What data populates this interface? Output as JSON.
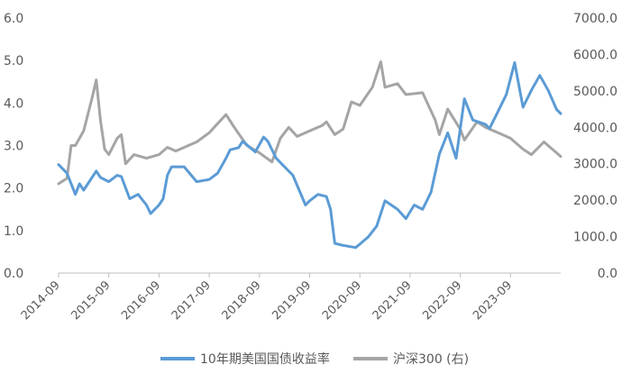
{
  "chart_data": {
    "type": "line",
    "title": "",
    "x_tick_labels": [
      "2014-09",
      "2015-09",
      "2016-09",
      "2017-09",
      "2018-09",
      "2019-09",
      "2020-09",
      "2021-09",
      "2022-09",
      "2023-09"
    ],
    "x_range": [
      "2014-09",
      "2024-09"
    ],
    "y_left": {
      "range": [
        0,
        6
      ],
      "tick_labels": [
        "0.0",
        "1.0",
        "2.0",
        "3.0",
        "4.0",
        "5.0",
        "6.0"
      ]
    },
    "y_right": {
      "range": [
        0,
        7000
      ],
      "tick_labels": [
        "0.0",
        "1000.0",
        "2000.0",
        "3000.0",
        "4000.0",
        "5000.0",
        "6000.0",
        "7000.0"
      ]
    },
    "grid": false,
    "legend_position": "bottom",
    "series": [
      {
        "name": "10年期美国国债收益率",
        "axis": "left",
        "color": "#5b9bd5",
        "points": [
          [
            "2014-09",
            2.55
          ],
          [
            "2014-11",
            2.35
          ],
          [
            "2015-01",
            1.85
          ],
          [
            "2015-02",
            2.1
          ],
          [
            "2015-03",
            1.95
          ],
          [
            "2015-06",
            2.4
          ],
          [
            "2015-07",
            2.25
          ],
          [
            "2015-09",
            2.15
          ],
          [
            "2015-11",
            2.3
          ],
          [
            "2015-12",
            2.27
          ],
          [
            "2016-02",
            1.75
          ],
          [
            "2016-04",
            1.85
          ],
          [
            "2016-06",
            1.6
          ],
          [
            "2016-07",
            1.4
          ],
          [
            "2016-09",
            1.6
          ],
          [
            "2016-10",
            1.75
          ],
          [
            "2016-11",
            2.3
          ],
          [
            "2016-12",
            2.5
          ],
          [
            "2017-03",
            2.5
          ],
          [
            "2017-06",
            2.15
          ],
          [
            "2017-09",
            2.2
          ],
          [
            "2017-11",
            2.35
          ],
          [
            "2018-01",
            2.7
          ],
          [
            "2018-02",
            2.9
          ],
          [
            "2018-04",
            2.95
          ],
          [
            "2018-05",
            3.1
          ],
          [
            "2018-08",
            2.85
          ],
          [
            "2018-10",
            3.2
          ],
          [
            "2018-11",
            3.1
          ],
          [
            "2019-01",
            2.7
          ],
          [
            "2019-03",
            2.5
          ],
          [
            "2019-05",
            2.3
          ],
          [
            "2019-08",
            1.6
          ],
          [
            "2019-09",
            1.7
          ],
          [
            "2019-11",
            1.85
          ],
          [
            "2020-01",
            1.8
          ],
          [
            "2020-02",
            1.5
          ],
          [
            "2020-03",
            0.7
          ],
          [
            "2020-05",
            0.65
          ],
          [
            "2020-08",
            0.6
          ],
          [
            "2020-09",
            0.68
          ],
          [
            "2020-11",
            0.85
          ],
          [
            "2021-01",
            1.1
          ],
          [
            "2021-03",
            1.7
          ],
          [
            "2021-06",
            1.5
          ],
          [
            "2021-08",
            1.28
          ],
          [
            "2021-10",
            1.6
          ],
          [
            "2021-12",
            1.5
          ],
          [
            "2022-02",
            1.9
          ],
          [
            "2022-04",
            2.8
          ],
          [
            "2022-06",
            3.3
          ],
          [
            "2022-08",
            2.7
          ],
          [
            "2022-10",
            4.1
          ],
          [
            "2022-12",
            3.6
          ],
          [
            "2023-03",
            3.5
          ],
          [
            "2023-04",
            3.4
          ],
          [
            "2023-06",
            3.8
          ],
          [
            "2023-08",
            4.2
          ],
          [
            "2023-10",
            4.95
          ],
          [
            "2023-12",
            3.9
          ],
          [
            "2024-02",
            4.3
          ],
          [
            "2024-04",
            4.65
          ],
          [
            "2024-06",
            4.3
          ],
          [
            "2024-08",
            3.85
          ],
          [
            "2024-09",
            3.75
          ]
        ]
      },
      {
        "name": "沪深300 (右)",
        "axis": "right",
        "color": "#a5a5a5",
        "points": [
          [
            "2014-09",
            2450
          ],
          [
            "2014-11",
            2600
          ],
          [
            "2014-12",
            3500
          ],
          [
            "2015-01",
            3500
          ],
          [
            "2015-03",
            3900
          ],
          [
            "2015-05",
            4800
          ],
          [
            "2015-06",
            5300
          ],
          [
            "2015-07",
            4200
          ],
          [
            "2015-08",
            3400
          ],
          [
            "2015-09",
            3250
          ],
          [
            "2015-11",
            3700
          ],
          [
            "2015-12",
            3800
          ],
          [
            "2016-01",
            3000
          ],
          [
            "2016-03",
            3250
          ],
          [
            "2016-06",
            3150
          ],
          [
            "2016-09",
            3250
          ],
          [
            "2016-11",
            3450
          ],
          [
            "2017-01",
            3350
          ],
          [
            "2017-04",
            3500
          ],
          [
            "2017-06",
            3600
          ],
          [
            "2017-09",
            3850
          ],
          [
            "2017-11",
            4100
          ],
          [
            "2018-01",
            4350
          ],
          [
            "2018-03",
            4000
          ],
          [
            "2018-06",
            3500
          ],
          [
            "2018-09",
            3300
          ],
          [
            "2018-12",
            3050
          ],
          [
            "2019-02",
            3700
          ],
          [
            "2019-04",
            4000
          ],
          [
            "2019-06",
            3750
          ],
          [
            "2019-09",
            3900
          ],
          [
            "2019-12",
            4050
          ],
          [
            "2020-01",
            4150
          ],
          [
            "2020-03",
            3800
          ],
          [
            "2020-05",
            3950
          ],
          [
            "2020-07",
            4700
          ],
          [
            "2020-09",
            4600
          ],
          [
            "2020-12",
            5100
          ],
          [
            "2021-02",
            5800
          ],
          [
            "2021-03",
            5100
          ],
          [
            "2021-06",
            5200
          ],
          [
            "2021-08",
            4900
          ],
          [
            "2021-12",
            4950
          ],
          [
            "2022-03",
            4200
          ],
          [
            "2022-04",
            3800
          ],
          [
            "2022-06",
            4500
          ],
          [
            "2022-09",
            3950
          ],
          [
            "2022-10",
            3650
          ],
          [
            "2023-01",
            4150
          ],
          [
            "2023-03",
            4000
          ],
          [
            "2023-06",
            3850
          ],
          [
            "2023-09",
            3700
          ],
          [
            "2023-12",
            3400
          ],
          [
            "2024-02",
            3250
          ],
          [
            "2024-05",
            3600
          ],
          [
            "2024-07",
            3400
          ],
          [
            "2024-09",
            3200
          ]
        ]
      }
    ]
  }
}
